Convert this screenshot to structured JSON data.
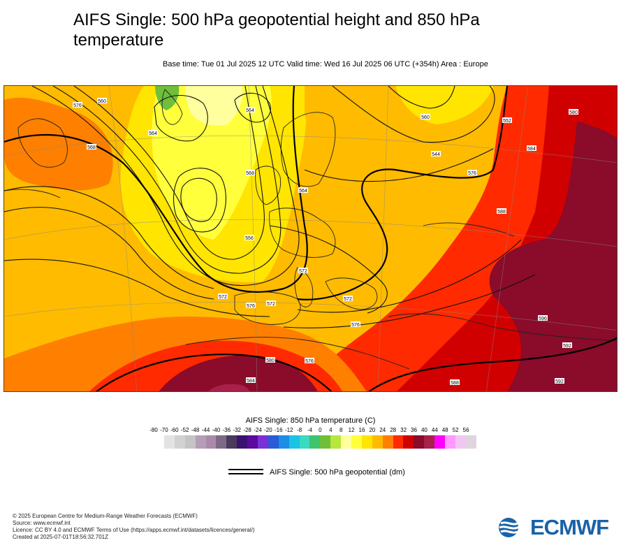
{
  "header": {
    "title": "AIFS Single: 500 hPa geopotential height and 850 hPa temperature",
    "subtitle": "Base time: Tue 01 Jul 2025 12 UTC Valid time: Wed 16 Jul 2025 06 UTC (+354h) Area : Europe"
  },
  "legend": {
    "title": "AIFS Single: 850 hPa temperature (C)",
    "ticks": [
      "-80",
      "-70",
      "-60",
      "-52",
      "-48",
      "-44",
      "-40",
      "-36",
      "-32",
      "-28",
      "-24",
      "-20",
      "-16",
      "-12",
      "-8",
      "-4",
      "0",
      "4",
      "8",
      "12",
      "16",
      "20",
      "24",
      "28",
      "32",
      "36",
      "40",
      "44",
      "48",
      "52",
      "56"
    ],
    "colors": [
      "#e3e3e3",
      "#d2d2d2",
      "#c4c4c4",
      "#b69db6",
      "#a98ba9",
      "#7c6a87",
      "#4a3a5c",
      "#3a1370",
      "#5a0a9e",
      "#7b2fd6",
      "#2b5bd6",
      "#1a8fe3",
      "#19c4e6",
      "#39d9c2",
      "#3fc46b",
      "#6fbf3a",
      "#b8e63b",
      "#ffff9e",
      "#ffff3c",
      "#ffe500",
      "#ffbb00",
      "#ff8000",
      "#ff2a00",
      "#d10000",
      "#8a0b2a",
      "#a8204b",
      "#ff00ff",
      "#ff99ff",
      "#f2c6f2",
      "#e0d4e0"
    ],
    "line_label": "AIFS Single: 500 hPa geopotential (dm)"
  },
  "map": {
    "contour_labels": [
      "576",
      "560",
      "568",
      "564",
      "564",
      "568",
      "564",
      "560",
      "552",
      "544",
      "556",
      "572",
      "572",
      "576",
      "576",
      "572",
      "576",
      "580",
      "584",
      "588",
      "592",
      "592",
      "596",
      "588",
      "584",
      "580",
      "576",
      "572"
    ]
  },
  "footer": {
    "line1": "© 2025 European Centre for Medium-Range Weather Forecasts (ECMWF)",
    "line2": "Source: www.ecmwf.int",
    "line3": "Licence: CC BY 4.0 and ECMWF Terms of Use (https://apps.ecmwf.int/datasets/licences/general/)",
    "line4": "Created at 2025-07-01T18:56:32.701Z"
  },
  "logo": {
    "text": "ECMWF",
    "icon": "ecmwf-logo-icon",
    "color": "#1a62a8"
  }
}
